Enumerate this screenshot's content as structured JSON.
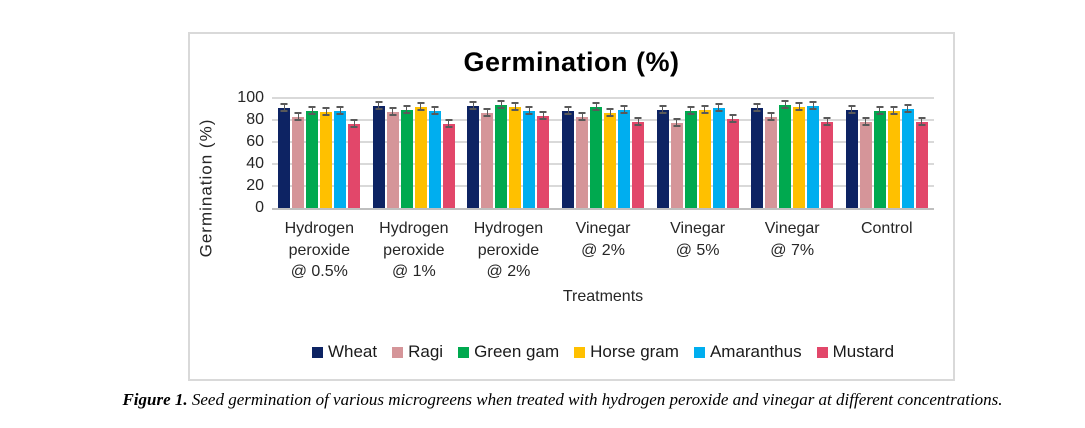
{
  "figure": {
    "caption_label": "Figure 1.",
    "caption_text": " Seed germination of various microgreens when treated with hydrogen peroxide and vinegar at different concentrations."
  },
  "chart_data": {
    "type": "bar",
    "title": "Germination (%)",
    "xlabel": "Treatments",
    "ylabel": "Germination  (%)",
    "ylim": [
      0,
      100
    ],
    "yticks": [
      0,
      20,
      40,
      60,
      80,
      100
    ],
    "grid": "horizontal",
    "gridline_color": "#d9d9d9",
    "legend_position": "bottom",
    "error_bars": {
      "visible": true,
      "approx_plus_minus": 2,
      "color": "#595959"
    },
    "categories": [
      "Hydrogen peroxide @ 0.5%",
      "Hydrogen peroxide @ 1%",
      "Hydrogen peroxide @ 2%",
      "Vinegar @ 2%",
      "Vinegar @ 5%",
      "Vinegar @ 7%",
      "Control"
    ],
    "series": [
      {
        "name": "Wheat",
        "color": "#0d2363",
        "values": [
          91,
          93,
          93,
          88,
          89,
          91,
          89
        ]
      },
      {
        "name": "Ragi",
        "color": "#d59599",
        "values": [
          83,
          87,
          86,
          83,
          77,
          83,
          78
        ]
      },
      {
        "name": "Green gam",
        "color": "#00a94f",
        "values": [
          88,
          89,
          94,
          92,
          88,
          94,
          88
        ]
      },
      {
        "name": "Horse gram",
        "color": "#ffc000",
        "values": [
          87,
          92,
          92,
          86,
          89,
          92,
          88
        ]
      },
      {
        "name": "Amaranthus",
        "color": "#00aeef",
        "values": [
          88,
          88,
          88,
          89,
          91,
          93,
          90
        ]
      },
      {
        "name": "Mustard",
        "color": "#e2476a",
        "values": [
          76,
          76,
          84,
          78,
          81,
          78,
          78
        ]
      }
    ]
  }
}
